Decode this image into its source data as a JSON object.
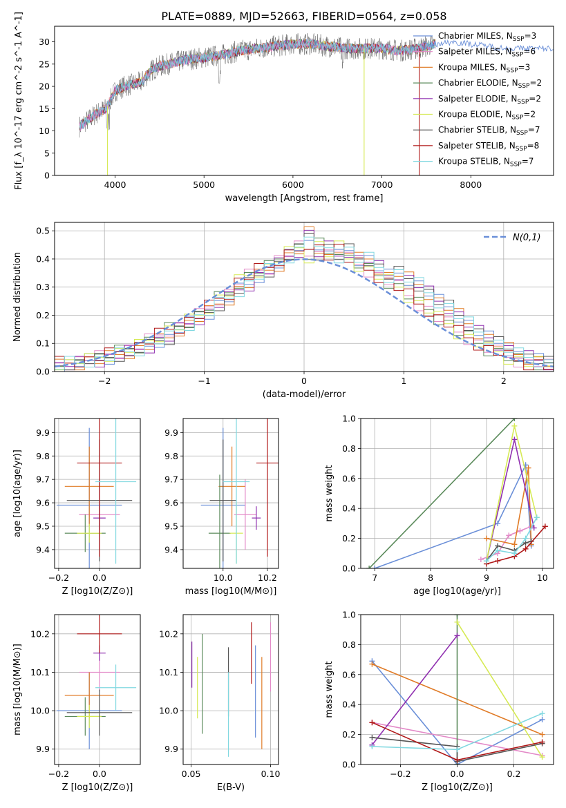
{
  "figure": {
    "title": "PLATE=0889, MJD=52663, FIBERID=0564, z=0.058",
    "models": [
      {
        "name": "Chabrier MILES",
        "nssp": "3",
        "color": "#6a8fd8"
      },
      {
        "name": "Salpeter MILES",
        "nssp": "6",
        "color": "#e38ac8"
      },
      {
        "name": "Kroupa MILES",
        "nssp": "3",
        "color": "#e07b27"
      },
      {
        "name": "Chabrier ELODIE",
        "nssp": "2",
        "color": "#5a8a5a"
      },
      {
        "name": "Salpeter ELODIE",
        "nssp": "2",
        "color": "#9030b0"
      },
      {
        "name": "Kroupa ELODIE",
        "nssp": "2",
        "color": "#d6ea55"
      },
      {
        "name": "Chabrier STELIB",
        "nssp": "7",
        "color": "#555555"
      },
      {
        "name": "Salpeter STELIB",
        "nssp": "8",
        "color": "#b01818"
      },
      {
        "name": "Kroupa STELIB",
        "nssp": "7",
        "color": "#80d8e0"
      }
    ]
  },
  "chart_data": [
    {
      "type": "line",
      "id": "spectrum",
      "xlabel": "wavelength [Angstrom, rest frame]",
      "ylabel": "Flux [f_λ 10^-17 erg cm^-2 s^-1 A^-1]",
      "xlim": [
        3320,
        8930
      ],
      "ylim": [
        0,
        33.5
      ],
      "xticks": [
        4000,
        5000,
        6000,
        7000,
        8000
      ],
      "yticks": [
        0,
        5,
        10,
        15,
        20,
        25,
        30
      ],
      "legend_position": "right",
      "continuum": {
        "x": [
          3600,
          3700,
          3800,
          3900,
          4000,
          4100,
          4200,
          4300,
          4400,
          4500,
          4600,
          4800,
          5000,
          5200,
          5400,
          5600,
          5800,
          6000,
          6200,
          6400,
          6600,
          6800,
          7000,
          7200,
          7400,
          7600,
          7800,
          8000,
          8200,
          8400,
          8600,
          8900
        ],
        "y": [
          11,
          12.5,
          14,
          15,
          19,
          20,
          20.5,
          21,
          23.5,
          24.5,
          25,
          26,
          26.5,
          27,
          28,
          28.5,
          29,
          29.5,
          29.5,
          29,
          28.5,
          28.5,
          28.5,
          28,
          28.5,
          29.5,
          30,
          29.5,
          29,
          28.5,
          28.5,
          28.5
        ]
      },
      "spikes": [
        {
          "x": 3915,
          "y_min": 0,
          "color": "#d6ea55"
        },
        {
          "x": 6800,
          "y_min": 0,
          "color": "#d6ea55"
        },
        {
          "x": 7420,
          "y_min": 0,
          "color": "#b01818"
        }
      ]
    },
    {
      "type": "area",
      "id": "residual_histogram",
      "xlabel": "(data-model)/error",
      "ylabel": "Normed distribution",
      "xlim": [
        -2.5,
        2.5
      ],
      "ylim": [
        0,
        0.53
      ],
      "xticks": [
        -2,
        -1,
        0,
        1,
        2
      ],
      "yticks": [
        0.0,
        0.1,
        0.2,
        0.3,
        0.4,
        0.5
      ],
      "legend": [
        {
          "label": "N(0,1)",
          "style": "dashed"
        }
      ],
      "bin_width": 0.1,
      "bin_start": -2.5,
      "series_values": [
        [
          0.02,
          0.03,
          0.03,
          0.04,
          0.04,
          0.05,
          0.06,
          0.07,
          0.08,
          0.09,
          0.11,
          0.12,
          0.15,
          0.17,
          0.19,
          0.21,
          0.24,
          0.26,
          0.29,
          0.31,
          0.34,
          0.36,
          0.38,
          0.41,
          0.43,
          0.49,
          0.42,
          0.44,
          0.41,
          0.43,
          0.4,
          0.4,
          0.37,
          0.34,
          0.35,
          0.33,
          0.31,
          0.28,
          0.25,
          0.23,
          0.2,
          0.17,
          0.14,
          0.12,
          0.1,
          0.08,
          0.06,
          0.05,
          0.04,
          0.03
        ],
        [
          0.03,
          0.03,
          0.04,
          0.04,
          0.05,
          0.06,
          0.07,
          0.08,
          0.09,
          0.11,
          0.13,
          0.15,
          0.16,
          0.18,
          0.2,
          0.23,
          0.26,
          0.28,
          0.32,
          0.34,
          0.36,
          0.37,
          0.4,
          0.42,
          0.44,
          0.41,
          0.45,
          0.42,
          0.44,
          0.4,
          0.38,
          0.36,
          0.34,
          0.32,
          0.3,
          0.27,
          0.24,
          0.22,
          0.19,
          0.17,
          0.14,
          0.12,
          0.1,
          0.08,
          0.07,
          0.05,
          0.04,
          0.03,
          0.03,
          0.02
        ]
      ],
      "normal": {
        "mean": 0,
        "sigma": 1
      }
    },
    {
      "type": "scatter",
      "id": "age_vs_Z",
      "xlabel": "Z [log10(Z/Z⊙)]",
      "ylabel": "age [log10(age/yr)]",
      "xlim": [
        -0.22,
        0.2
      ],
      "ylim": [
        9.32,
        9.96
      ],
      "xticks": [
        -0.2,
        0.0
      ],
      "yticks": [
        9.4,
        9.5,
        9.6,
        9.7,
        9.8,
        9.9
      ],
      "points": [
        {
          "x": -0.05,
          "y": 9.59,
          "xerr": 0.16,
          "yerr": 0.33,
          "c": 0
        },
        {
          "x": 0.0,
          "y": 9.55,
          "xerr": 0.1,
          "yerr": 0.15,
          "c": 1
        },
        {
          "x": -0.05,
          "y": 9.67,
          "xerr": 0.12,
          "yerr": 0.17,
          "c": 2
        },
        {
          "x": -0.07,
          "y": 9.47,
          "xerr": 0.1,
          "yerr": 0.08,
          "c": 3
        },
        {
          "x": 0.0,
          "y": 9.535,
          "xerr": 0.03,
          "yerr": 0.05,
          "c": 4
        },
        {
          "x": -0.05,
          "y": 9.47,
          "xerr": 0.06,
          "yerr": 0.04,
          "c": 5
        },
        {
          "x": 0.0,
          "y": 9.61,
          "xerr": 0.16,
          "yerr": 0.26,
          "c": 6
        },
        {
          "x": 0.0,
          "y": 9.77,
          "xerr": 0.11,
          "yerr": 0.4,
          "c": 7
        },
        {
          "x": 0.08,
          "y": 9.69,
          "xerr": 0.1,
          "yerr": 0.35,
          "c": 8
        }
      ]
    },
    {
      "type": "scatter",
      "id": "age_vs_mass",
      "xlabel": "mass [log10(M/M⊙)]",
      "ylabel": "",
      "xlim": [
        9.82,
        10.25
      ],
      "ylim": [
        9.32,
        9.96
      ],
      "xticks": [
        10.0,
        10.2
      ],
      "yticks": [
        9.4,
        9.5,
        9.6,
        9.7,
        9.8,
        9.9
      ],
      "points": [
        {
          "x": 10.0,
          "y": 9.59,
          "xerr": 0.1,
          "yerr": 0.33,
          "c": 0
        },
        {
          "x": 10.1,
          "y": 9.55,
          "xerr": 0.05,
          "yerr": 0.15,
          "c": 1
        },
        {
          "x": 10.04,
          "y": 9.67,
          "xerr": 0.06,
          "yerr": 0.17,
          "c": 2
        },
        {
          "x": 9.985,
          "y": 9.47,
          "xerr": 0.05,
          "yerr": 0.25,
          "c": 3
        },
        {
          "x": 10.15,
          "y": 9.535,
          "xerr": 0.02,
          "yerr": 0.05,
          "c": 4
        },
        {
          "x": 10.06,
          "y": 9.47,
          "xerr": 0.03,
          "yerr": 0.13,
          "c": 5
        },
        {
          "x": 10.0,
          "y": 9.61,
          "xerr": 0.06,
          "yerr": 0.26,
          "c": 6
        },
        {
          "x": 10.2,
          "y": 9.77,
          "xerr": 0.05,
          "yerr": 0.4,
          "c": 7
        },
        {
          "x": 10.06,
          "y": 9.69,
          "xerr": 0.06,
          "yerr": 0.35,
          "c": 8
        }
      ]
    },
    {
      "type": "line",
      "id": "mass_weight_vs_age",
      "xlabel": "age [log10(age/yr)]",
      "ylabel": "mass weight",
      "xlim": [
        6.75,
        10.2
      ],
      "ylim": [
        0.0,
        1.0
      ],
      "xticks": [
        7,
        8,
        9,
        10
      ],
      "yticks": [
        0.0,
        0.2,
        0.4,
        0.6,
        0.8,
        1.0
      ],
      "series": [
        {
          "c": 0,
          "x": [
            7.0,
            9.2,
            9.7,
            9.8
          ],
          "y": [
            0.0,
            0.3,
            0.69,
            0.15
          ]
        },
        {
          "c": 1,
          "x": [
            8.9,
            9.2,
            9.4,
            9.6,
            9.8
          ],
          "y": [
            0.06,
            0.1,
            0.22,
            0.25,
            0.28
          ]
        },
        {
          "c": 2,
          "x": [
            9.0,
            9.5,
            9.75,
            9.8
          ],
          "y": [
            0.2,
            0.16,
            0.67,
            0.16
          ]
        },
        {
          "c": 3,
          "x": [
            6.9,
            9.5
          ],
          "y": [
            0.0,
            1.0
          ]
        },
        {
          "c": 4,
          "x": [
            9.0,
            9.5,
            9.85
          ],
          "y": [
            0.05,
            0.86,
            0.27
          ]
        },
        {
          "c": 5,
          "x": [
            9.0,
            9.5,
            9.9
          ],
          "y": [
            0.05,
            0.95,
            0.34
          ]
        },
        {
          "c": 6,
          "x": [
            9.0,
            9.2,
            9.5,
            9.7,
            9.8
          ],
          "y": [
            0.05,
            0.15,
            0.12,
            0.17,
            0.18
          ]
        },
        {
          "c": 7,
          "x": [
            9.0,
            9.2,
            9.5,
            9.7,
            10.05
          ],
          "y": [
            0.03,
            0.05,
            0.08,
            0.13,
            0.28
          ]
        },
        {
          "c": 8,
          "x": [
            9.0,
            9.2,
            9.5,
            9.7,
            9.9
          ],
          "y": [
            0.05,
            0.12,
            0.1,
            0.2,
            0.34
          ]
        }
      ]
    },
    {
      "type": "scatter",
      "id": "mass_vs_Z",
      "xlabel": "Z [log10(Z/Z⊙)]",
      "ylabel": "mass [log10(M/M⊙)]",
      "xlim": [
        -0.22,
        0.2
      ],
      "ylim": [
        9.86,
        10.25
      ],
      "xticks": [
        -0.2,
        0.0
      ],
      "yticks": [
        9.9,
        10.0,
        10.1,
        10.2
      ],
      "points": [
        {
          "x": -0.05,
          "y": 10.0,
          "xerr": 0.16,
          "yerr": 0.1,
          "c": 0
        },
        {
          "x": 0.0,
          "y": 10.1,
          "xerr": 0.1,
          "yerr": 0.05,
          "c": 1
        },
        {
          "x": -0.05,
          "y": 10.04,
          "xerr": 0.12,
          "yerr": 0.06,
          "c": 2
        },
        {
          "x": -0.07,
          "y": 9.985,
          "xerr": 0.1,
          "yerr": 0.05,
          "c": 3
        },
        {
          "x": 0.0,
          "y": 10.15,
          "xerr": 0.03,
          "yerr": 0.02,
          "c": 4
        },
        {
          "x": -0.05,
          "y": 9.985,
          "xerr": 0.06,
          "yerr": 0.03,
          "c": 5
        },
        {
          "x": 0.0,
          "y": 9.995,
          "xerr": 0.16,
          "yerr": 0.06,
          "c": 6
        },
        {
          "x": 0.0,
          "y": 10.2,
          "xerr": 0.11,
          "yerr": 0.05,
          "c": 7
        },
        {
          "x": 0.08,
          "y": 10.06,
          "xerr": 0.1,
          "yerr": 0.06,
          "c": 8
        }
      ]
    },
    {
      "type": "scatter",
      "id": "mass_vs_EBV",
      "xlabel": "E(B-V)",
      "ylabel": "",
      "xlim": [
        0.045,
        0.105
      ],
      "ylim": [
        9.86,
        10.25
      ],
      "xticks": [
        0.05,
        0.1
      ],
      "yticks": [
        9.9,
        10.0,
        10.1,
        10.2
      ],
      "points": [
        {
          "x": 0.0505,
          "y": 10.12,
          "yerr": 0.06,
          "c": 4
        },
        {
          "x": 0.054,
          "y": 10.06,
          "yerr": 0.08,
          "c": 5
        },
        {
          "x": 0.057,
          "y": 10.07,
          "yerr": 0.13,
          "c": 3
        },
        {
          "x": 0.0735,
          "y": 10.075,
          "yerr": 0.09,
          "c": 6
        },
        {
          "x": 0.0735,
          "y": 9.99,
          "yerr": 0.11,
          "c": 8
        },
        {
          "x": 0.088,
          "y": 10.15,
          "yerr": 0.08,
          "c": 7
        },
        {
          "x": 0.0905,
          "y": 10.05,
          "yerr": 0.12,
          "c": 0
        },
        {
          "x": 0.0945,
          "y": 10.02,
          "yerr": 0.12,
          "c": 2
        },
        {
          "x": 0.1,
          "y": 10.14,
          "yerr": 0.09,
          "c": 1
        }
      ]
    },
    {
      "type": "line",
      "id": "mass_weight_vs_Z",
      "xlabel": "Z [log10(Z/Z⊙)]",
      "ylabel": "mass weight",
      "xlim": [
        -0.34,
        0.34
      ],
      "ylim": [
        0.0,
        1.0
      ],
      "xticks": [
        -0.2,
        0.0,
        0.2
      ],
      "yticks": [
        0.0,
        0.2,
        0.4,
        0.6,
        0.8,
        1.0
      ],
      "series": [
        {
          "c": 0,
          "x": [
            -0.3,
            0.0,
            0.3
          ],
          "y": [
            0.69,
            0.0,
            0.3
          ]
        },
        {
          "c": 1,
          "x": [
            -0.3,
            0.3
          ],
          "y": [
            0.28,
            0.06
          ]
        },
        {
          "c": 2,
          "x": [
            -0.3,
            0.3
          ],
          "y": [
            0.67,
            0.2
          ]
        },
        {
          "c": 3,
          "x": [
            0.0,
            0.0
          ],
          "y": [
            0.0,
            1.0
          ]
        },
        {
          "c": 4,
          "x": [
            -0.3,
            0.0
          ],
          "y": [
            0.13,
            0.86
          ]
        },
        {
          "c": 5,
          "x": [
            0.0,
            0.3
          ],
          "y": [
            0.95,
            0.05
          ]
        },
        {
          "c": 6,
          "x": [
            -0.3,
            0.0,
            0.0,
            0.3
          ],
          "y": [
            0.18,
            0.12,
            0.02,
            0.14
          ]
        },
        {
          "c": 7,
          "x": [
            -0.3,
            0.0,
            0.3
          ],
          "y": [
            0.28,
            0.03,
            0.15
          ]
        },
        {
          "c": 8,
          "x": [
            -0.3,
            0.0,
            0.3
          ],
          "y": [
            0.12,
            0.1,
            0.34
          ]
        }
      ]
    }
  ]
}
